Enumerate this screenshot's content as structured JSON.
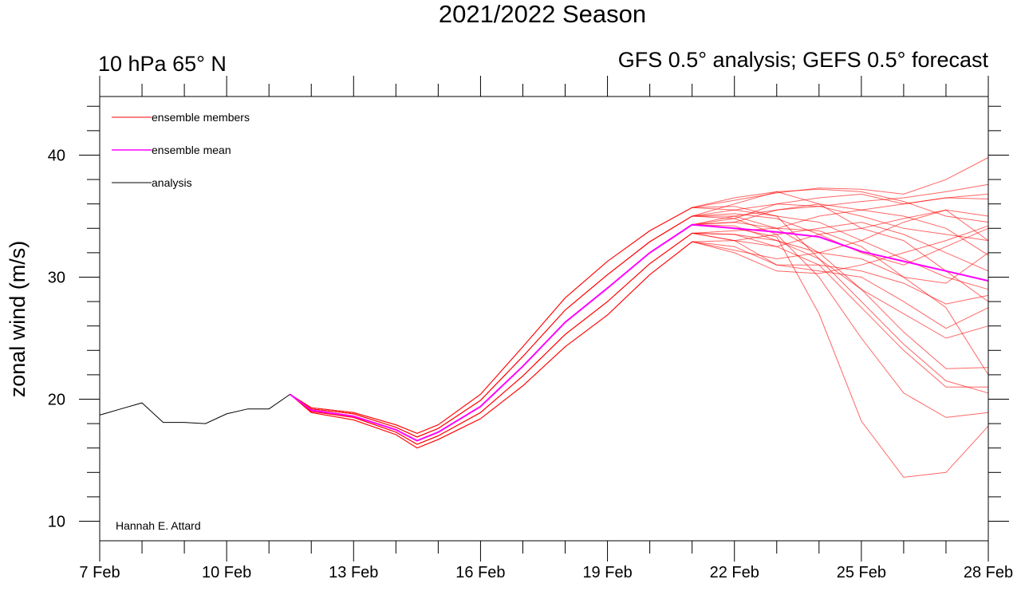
{
  "chart_data": {
    "type": "line",
    "title": "2021/2022 Season",
    "left_subtitle": "10 hPa 65° N",
    "right_subtitle": "GFS 0.5° analysis; GEFS 0.5° forecast",
    "ylabel": "zonal wind (m/s)",
    "xlabel": "",
    "xlim": [
      7,
      28
    ],
    "ylim": [
      8.4,
      44.8
    ],
    "x_ticks": [
      7,
      10,
      13,
      16,
      19,
      22,
      25,
      28
    ],
    "x_tick_labels": [
      "7 Feb",
      "10 Feb",
      "13 Feb",
      "16 Feb",
      "19 Feb",
      "22 Feb",
      "25 Feb",
      "28 Feb"
    ],
    "y_ticks": [
      10,
      20,
      30,
      40
    ],
    "y_tick_labels": [
      "10",
      "20",
      "30",
      "40"
    ],
    "grid": false,
    "legend_placement": "top-left",
    "legend": [
      {
        "label": "ensemble members",
        "color": "#ff0000"
      },
      {
        "label": "ensemble mean",
        "color": "#ff00ff"
      },
      {
        "label": "analysis",
        "color": "#000000"
      }
    ],
    "annotation": "Hannah E. Attard",
    "analysis": {
      "color": "#000000",
      "x": [
        7,
        7.5,
        8,
        8.5,
        9,
        9.5,
        10,
        10.5,
        11,
        11.5
      ],
      "y": [
        18.7,
        19.2,
        19.7,
        18.1,
        18.1,
        18.0,
        18.8,
        19.2,
        19.2,
        20.4
      ]
    },
    "ensemble_mean": {
      "color": "#ff00ff",
      "x": [
        11.5,
        12,
        13,
        14,
        14.5,
        15,
        16,
        17,
        18,
        19,
        20,
        21,
        22,
        23,
        24,
        25,
        26,
        27,
        28
      ],
      "y": [
        20.4,
        19.1,
        18.6,
        17.5,
        16.6,
        17.3,
        19.4,
        22.7,
        26.3,
        29.1,
        32.0,
        34.3,
        34.0,
        33.7,
        33.3,
        32.1,
        31.3,
        30.5,
        29.7
      ]
    },
    "ensemble_members": {
      "color": "#ff0000",
      "x": [
        11.5,
        12,
        13,
        14,
        14.5,
        15,
        16,
        17,
        18,
        19,
        20,
        21,
        22,
        23,
        24,
        25,
        26,
        27,
        28
      ],
      "members": [
        [
          20.4,
          19.3,
          18.9,
          17.9,
          17.2,
          17.9,
          20.4,
          24.3,
          28.3,
          31.3,
          33.8,
          35.7,
          36.3,
          36.9,
          37.3,
          37.2,
          36.8,
          38.0,
          39.8
        ],
        [
          20.4,
          19.2,
          18.8,
          17.7,
          16.9,
          17.6,
          19.9,
          23.5,
          27.3,
          30.2,
          32.9,
          35.0,
          35.5,
          36.0,
          35.8,
          36.2,
          36.5,
          37.0,
          37.6
        ],
        [
          20.4,
          19.1,
          18.6,
          17.5,
          16.6,
          17.3,
          19.4,
          22.7,
          26.3,
          29.1,
          32.0,
          34.3,
          34.0,
          33.3,
          27.0,
          18.2,
          13.6,
          14.0,
          17.8
        ],
        [
          20.4,
          19.2,
          18.8,
          17.7,
          16.9,
          17.6,
          19.9,
          23.5,
          27.3,
          30.2,
          32.9,
          35.0,
          34.8,
          33.5,
          30.0,
          25.0,
          20.5,
          18.5,
          18.9
        ],
        [
          20.4,
          19.0,
          18.5,
          17.3,
          16.3,
          17.0,
          18.9,
          21.9,
          25.3,
          28.0,
          31.1,
          33.6,
          33.5,
          32.5,
          31.0,
          27.5,
          24.0,
          21.0,
          21.0
        ],
        [
          20.4,
          19.1,
          18.6,
          17.5,
          16.6,
          17.3,
          19.4,
          22.7,
          26.3,
          29.1,
          32.0,
          34.3,
          34.5,
          34.0,
          32.0,
          29.0,
          25.5,
          22.5,
          22.6
        ],
        [
          20.4,
          19.3,
          18.9,
          17.9,
          17.2,
          17.9,
          20.4,
          24.3,
          28.3,
          31.3,
          33.8,
          35.7,
          35.8,
          35.0,
          31.5,
          28.0,
          24.5,
          21.5,
          20.5
        ],
        [
          20.4,
          19.0,
          18.5,
          17.3,
          16.3,
          17.0,
          18.9,
          21.9,
          25.3,
          28.0,
          31.1,
          33.6,
          33.0,
          31.0,
          30.5,
          30.0,
          28.0,
          25.8,
          27.5
        ],
        [
          20.4,
          18.9,
          18.3,
          17.1,
          16.0,
          16.7,
          18.4,
          21.1,
          24.3,
          26.9,
          30.2,
          32.9,
          32.5,
          31.0,
          31.0,
          30.5,
          29.5,
          27.8,
          28.5
        ],
        [
          20.4,
          19.2,
          18.8,
          17.7,
          16.9,
          17.6,
          19.9,
          23.5,
          27.3,
          30.2,
          32.9,
          35.0,
          36.0,
          37.0,
          37.2,
          37.0,
          36.2,
          35.0,
          34.5
        ],
        [
          20.4,
          19.1,
          18.6,
          17.5,
          16.6,
          17.3,
          19.4,
          22.7,
          26.3,
          29.1,
          32.0,
          34.3,
          35.0,
          35.5,
          35.8,
          35.0,
          34.0,
          33.5,
          33.0
        ],
        [
          20.4,
          19.0,
          18.5,
          17.3,
          16.3,
          17.0,
          18.9,
          21.9,
          25.3,
          28.0,
          31.1,
          33.6,
          33.8,
          34.0,
          35.0,
          35.5,
          36.0,
          36.5,
          36.4
        ],
        [
          20.4,
          19.3,
          18.9,
          17.9,
          17.2,
          17.9,
          20.4,
          24.3,
          28.3,
          31.3,
          33.8,
          35.7,
          35.5,
          35.0,
          34.5,
          33.0,
          31.5,
          30.0,
          29.0
        ],
        [
          20.4,
          18.9,
          18.3,
          17.1,
          16.0,
          16.7,
          18.4,
          21.1,
          24.3,
          26.9,
          30.2,
          32.9,
          32.2,
          31.5,
          32.0,
          33.0,
          34.5,
          35.5,
          35.0
        ],
        [
          20.4,
          19.1,
          18.6,
          17.5,
          16.6,
          17.3,
          19.4,
          22.7,
          26.3,
          29.1,
          32.0,
          34.3,
          34.2,
          33.0,
          32.0,
          31.5,
          30.0,
          29.5,
          32.0
        ],
        [
          20.4,
          19.2,
          18.8,
          17.7,
          16.9,
          17.6,
          19.9,
          23.5,
          27.3,
          30.2,
          32.9,
          35.0,
          35.2,
          34.8,
          33.5,
          32.0,
          31.0,
          32.5,
          34.0
        ],
        [
          20.4,
          19.0,
          18.5,
          17.3,
          16.3,
          17.0,
          18.9,
          21.9,
          25.3,
          28.0,
          31.1,
          33.6,
          33.0,
          32.5,
          33.5,
          34.0,
          34.8,
          35.5,
          33.0
        ],
        [
          20.4,
          19.1,
          18.6,
          17.5,
          16.6,
          17.3,
          19.4,
          22.7,
          26.3,
          29.1,
          32.0,
          34.3,
          34.5,
          35.5,
          36.0,
          35.5,
          35.0,
          34.0,
          31.8
        ],
        [
          20.4,
          19.3,
          18.9,
          17.9,
          17.2,
          17.9,
          20.4,
          24.3,
          28.3,
          31.3,
          33.8,
          35.7,
          36.5,
          37.0,
          36.0,
          34.0,
          33.0,
          30.5,
          28.0
        ],
        [
          20.4,
          18.9,
          18.3,
          17.1,
          16.0,
          16.7,
          18.4,
          21.1,
          24.3,
          26.9,
          30.2,
          32.9,
          32.0,
          30.5,
          30.3,
          31.0,
          32.0,
          33.0,
          34.2
        ],
        [
          20.4,
          19.0,
          18.5,
          17.3,
          16.3,
          17.0,
          18.9,
          21.9,
          25.3,
          28.0,
          31.1,
          33.6,
          33.5,
          33.0,
          31.5,
          29.0,
          27.0,
          25.0,
          26.0
        ],
        [
          20.4,
          19.2,
          18.8,
          17.7,
          16.9,
          17.6,
          19.9,
          23.5,
          27.3,
          30.2,
          32.9,
          35.0,
          35.0,
          34.0,
          33.8,
          32.5,
          30.0,
          27.5,
          22.0
        ],
        [
          20.4,
          19.1,
          18.6,
          17.5,
          16.6,
          17.3,
          19.4,
          22.7,
          26.3,
          29.1,
          32.0,
          34.3,
          34.8,
          36.0,
          36.5,
          36.8,
          36.0,
          36.5,
          36.8
        ],
        [
          20.4,
          18.9,
          18.3,
          17.1,
          16.0,
          16.7,
          18.4,
          21.1,
          24.3,
          26.9,
          30.2,
          32.9,
          33.0,
          33.5,
          34.0,
          34.5,
          33.5,
          32.0,
          30.5
        ]
      ]
    }
  }
}
